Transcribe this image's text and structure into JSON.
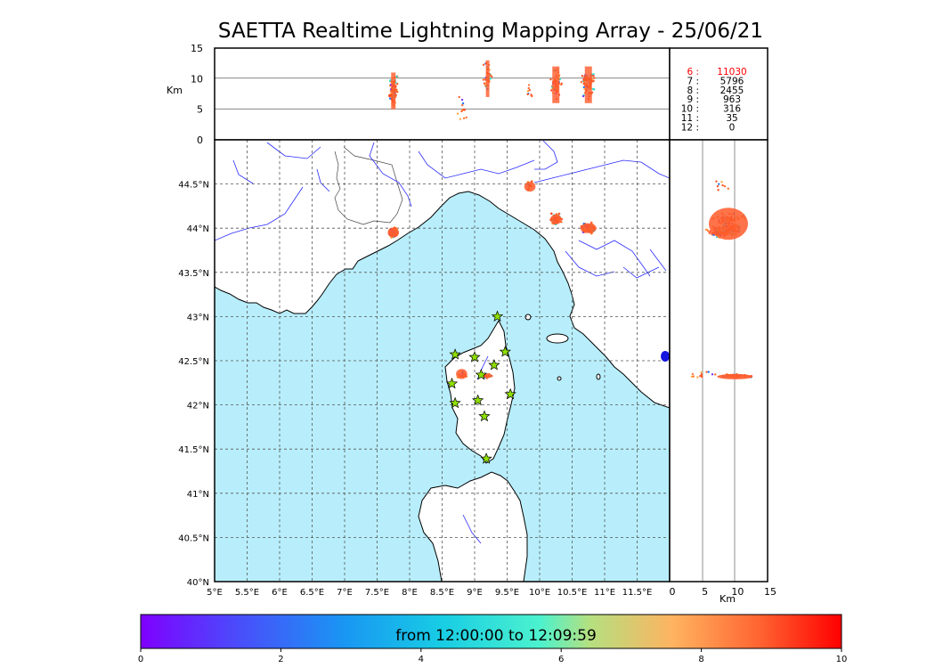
{
  "title": "SAETTA Realtime Lightning Mapping Array - 25/06/21",
  "colors": {
    "sea": "#b8eefb",
    "land": "#ffffff",
    "rivers": "#2a2aff",
    "grid": "#555555",
    "station": "#8ee000",
    "stats_highlight": "#ff0000"
  },
  "altitude_panel": {
    "ylabel": "Km",
    "yticks": [
      "0",
      "5",
      "10",
      "15"
    ]
  },
  "side_panel": {
    "xlabel": "Km",
    "xticks": [
      "0",
      "5",
      "10",
      "15"
    ]
  },
  "map": {
    "lon_ticks": [
      "5°E",
      "5.5°E",
      "6°E",
      "6.5°E",
      "7°E",
      "7.5°E",
      "8°E",
      "8.5°E",
      "9°E",
      "9.5°E",
      "10°E",
      "10.5°E",
      "11°E",
      "11.5°E"
    ],
    "lat_ticks": [
      "40°N",
      "40.5°N",
      "41°N",
      "41.5°N",
      "42°N",
      "42.5°N",
      "43°N",
      "43.5°N",
      "44°N",
      "44.5°N"
    ],
    "lon_range": [
      5,
      12
    ],
    "lat_range": [
      40,
      45
    ],
    "stations": [
      {
        "lon": 9.35,
        "lat": 43.0
      },
      {
        "lon": 8.7,
        "lat": 42.57
      },
      {
        "lon": 9.0,
        "lat": 42.54
      },
      {
        "lon": 9.47,
        "lat": 42.6
      },
      {
        "lon": 9.3,
        "lat": 42.45
      },
      {
        "lon": 9.1,
        "lat": 42.34
      },
      {
        "lon": 8.65,
        "lat": 42.24
      },
      {
        "lon": 9.55,
        "lat": 42.12
      },
      {
        "lon": 8.7,
        "lat": 42.02
      },
      {
        "lon": 9.05,
        "lat": 42.05
      },
      {
        "lon": 9.15,
        "lat": 41.87
      },
      {
        "lon": 9.18,
        "lat": 41.39
      }
    ],
    "lightning_clusters": [
      {
        "lon": 7.75,
        "lat": 43.95,
        "alt": 8
      },
      {
        "lon": 9.2,
        "lat": 42.33,
        "alt": 10
      },
      {
        "lon": 10.25,
        "lat": 44.1,
        "alt": 9
      },
      {
        "lon": 10.75,
        "lat": 44.0,
        "alt": 9
      },
      {
        "lon": 9.85,
        "lat": 44.47,
        "alt": 8
      },
      {
        "lon": 8.8,
        "lat": 42.35,
        "alt": 5
      }
    ]
  },
  "stats": [
    {
      "label": "6 :",
      "value": "11030",
      "highlight": true
    },
    {
      "label": "7 :",
      "value": "5796",
      "highlight": false
    },
    {
      "label": "8 :",
      "value": "2455",
      "highlight": false
    },
    {
      "label": "9 :",
      "value": "963",
      "highlight": false
    },
    {
      "label": "10 :",
      "value": "316",
      "highlight": false
    },
    {
      "label": "11 :",
      "value": "35",
      "highlight": false
    },
    {
      "label": "12 :",
      "value": "0",
      "highlight": false
    }
  ],
  "colorbar": {
    "label": "from 12:00:00 to 12:09:59",
    "ticks": [
      "0",
      "2",
      "4",
      "6",
      "8",
      "10"
    ],
    "range": [
      0,
      10
    ]
  }
}
